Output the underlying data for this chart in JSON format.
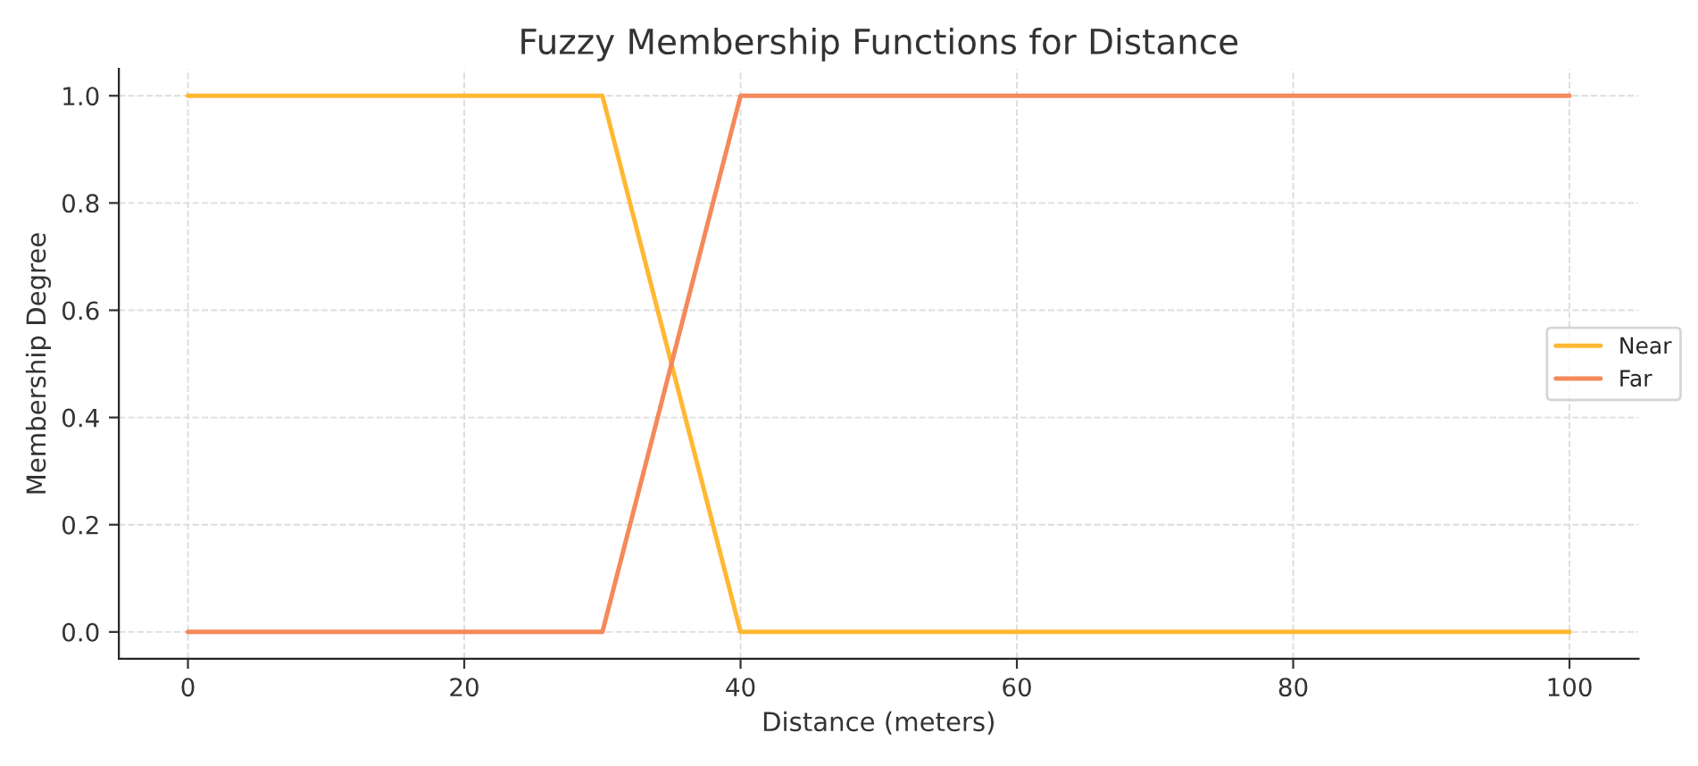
{
  "chart_data": {
    "type": "line",
    "title": "Fuzzy Membership Functions for Distance",
    "xlabel": "Distance (meters)",
    "ylabel": "Membership Degree",
    "x": [
      0,
      30,
      40,
      100
    ],
    "series": [
      {
        "name": "Near",
        "color": "#ffb833",
        "values": [
          1,
          1,
          0,
          0
        ]
      },
      {
        "name": "Far",
        "color": "#f4895a",
        "values": [
          0,
          0,
          1,
          1
        ]
      }
    ],
    "xlim": [
      -5,
      105
    ],
    "ylim": [
      -0.05,
      1.05
    ],
    "xticks": [
      0,
      20,
      40,
      60,
      80,
      100
    ],
    "yticks": [
      {
        "value": 0,
        "label": "0.0"
      },
      {
        "value": 0.2,
        "label": "0.2"
      },
      {
        "value": 0.4,
        "label": "0.4"
      },
      {
        "value": 0.6,
        "label": "0.6"
      },
      {
        "value": 0.8,
        "label": "0.8"
      },
      {
        "value": 1,
        "label": "1.0"
      }
    ],
    "grid": true,
    "legend": "right",
    "line_style": "solid",
    "marker": "none"
  }
}
